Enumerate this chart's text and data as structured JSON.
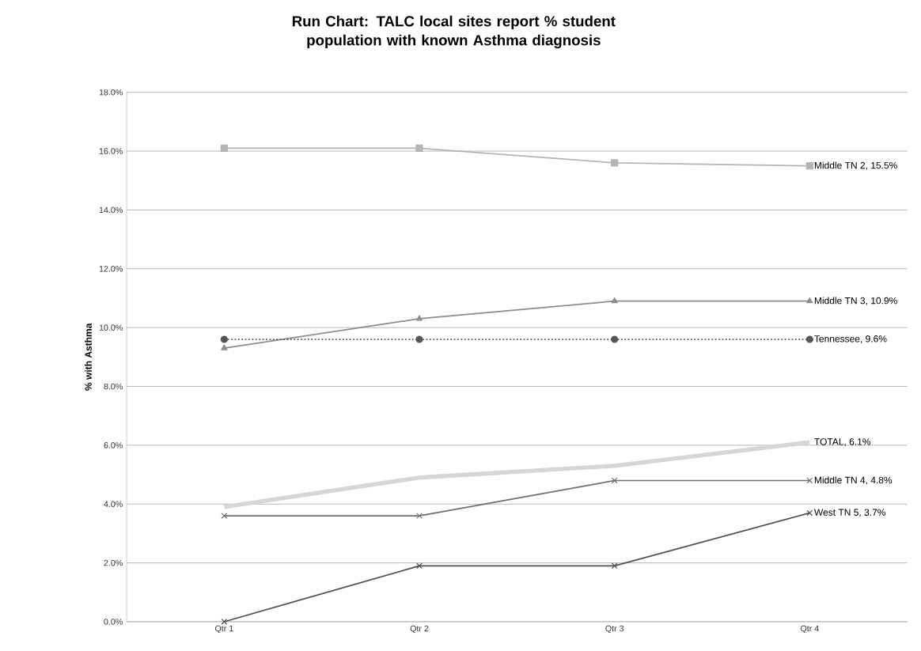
{
  "chart_data": {
    "type": "line",
    "title": "Run Chart: TALC local sites report % student population with known Asthma diagnosis",
    "ylabel": "% with Asthma",
    "categories": [
      "Qtr 1",
      "Qtr 2",
      "Qtr 3",
      "Qtr 4"
    ],
    "ylim": [
      0,
      18
    ],
    "yticks": [
      {
        "value": 0,
        "label": "0.0%"
      },
      {
        "value": 2,
        "label": "2.0%"
      },
      {
        "value": 4,
        "label": "4.0%"
      },
      {
        "value": 6,
        "label": "6.0%"
      },
      {
        "value": 8,
        "label": "8.0%"
      },
      {
        "value": 10,
        "label": "10.0%"
      },
      {
        "value": 12,
        "label": "12.0%"
      },
      {
        "value": 14,
        "label": "14.0%"
      },
      {
        "value": 16,
        "label": "16.0%"
      },
      {
        "value": 18,
        "label": "18.0%"
      }
    ],
    "grid": "y",
    "series": [
      {
        "color": "#b4b4b4",
        "marker": "square",
        "line_style": "solid",
        "values": [
          16.1,
          16.1,
          15.6,
          15.5
        ]
      },
      {
        "color": "#8c8c8c",
        "marker": "triangle",
        "line_style": "solid",
        "values": [
          9.3,
          10.3,
          10.9,
          10.9
        ]
      },
      {
        "color": "#555555",
        "marker": "circle",
        "line_style": "dotted",
        "values": [
          9.6,
          9.6,
          9.6,
          9.6
        ]
      },
      {
        "color": "#d6d6d6",
        "marker": "none",
        "line_style": "solid",
        "values": [
          3.9,
          4.9,
          5.3,
          6.1
        ]
      },
      {
        "color": "#6e6e6e",
        "marker": "cross",
        "line_style": "solid",
        "values": [
          3.6,
          3.6,
          4.8,
          4.8
        ]
      },
      {
        "color": "#505050",
        "marker": "cross",
        "line_style": "solid",
        "values": [
          0,
          1.9,
          1.9,
          3.7
        ]
      }
    ],
    "annotations": [
      {
        "text": "Middle TN 2, 15.5%",
        "x": "Qtr 4",
        "y": 15.5
      },
      {
        "text": "Middle TN 3, 10.9%",
        "x": "Qtr 4",
        "y": 10.9
      },
      {
        "text": "Tennessee, 9.6%",
        "x": "Qtr 4",
        "y": 9.6
      },
      {
        "text": "TOTAL, 6.1%",
        "x": "Qtr 4",
        "y": 6.1
      },
      {
        "text": "Middle TN 4, 4.8%",
        "x": "Qtr 4",
        "y": 4.8
      },
      {
        "text": "West TN 5, 3.7%",
        "x": "Qtr 4",
        "y": 3.7
      }
    ]
  }
}
